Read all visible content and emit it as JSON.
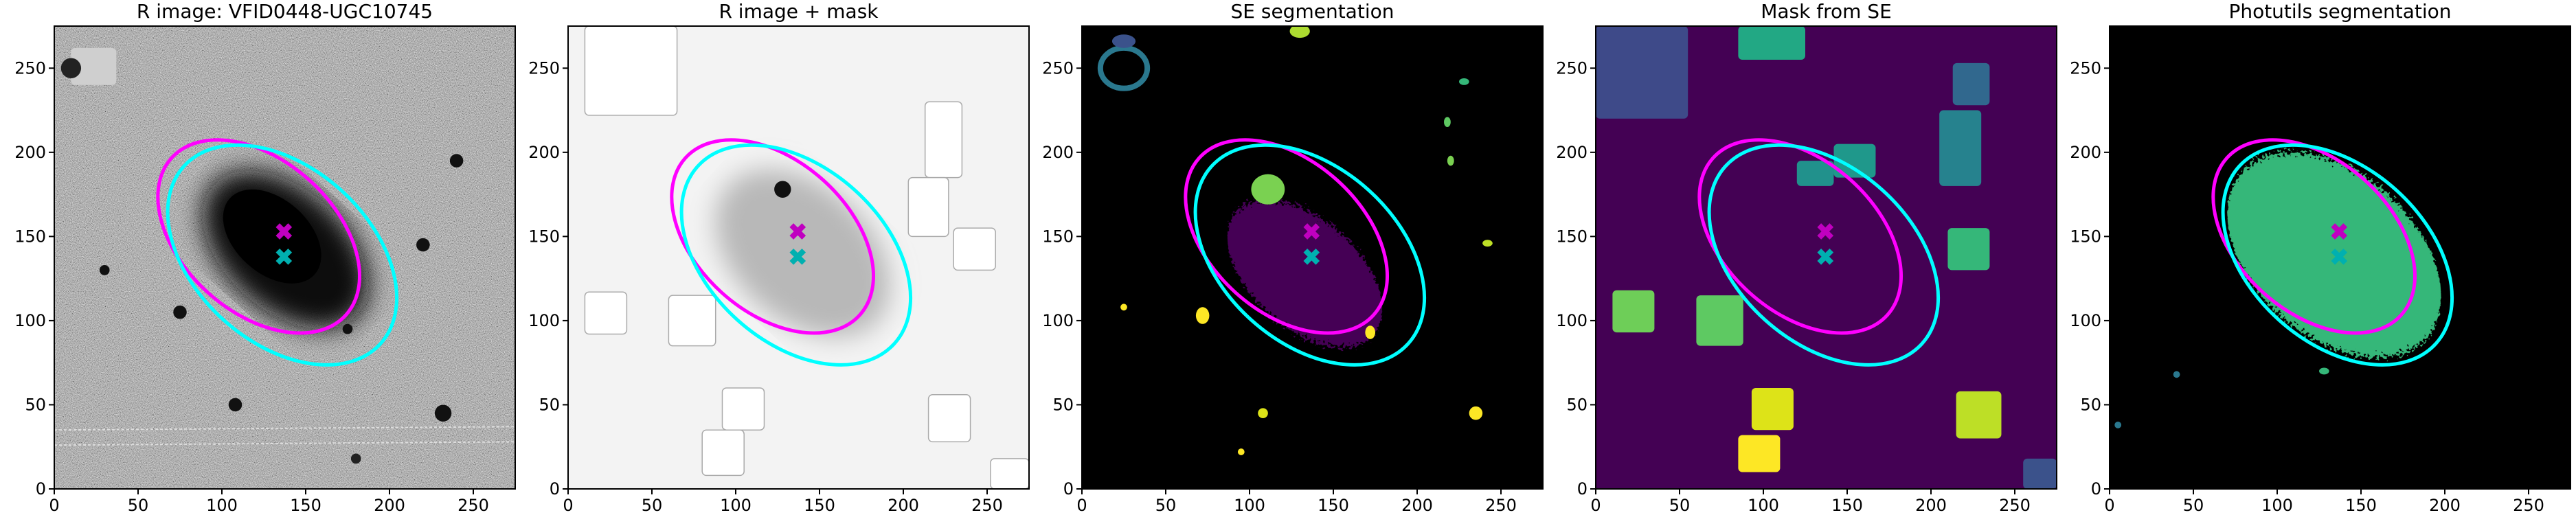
{
  "chart_data": [
    {
      "type": "image",
      "title": "R image: VFID0448-UGC10745",
      "xlim": [
        0,
        275
      ],
      "ylim": [
        0,
        275
      ],
      "xticks": [
        0,
        50,
        100,
        150,
        200,
        250
      ],
      "yticks": [
        0,
        50,
        100,
        150,
        200,
        250
      ],
      "ellipses": [
        {
          "color": "#ff00ff",
          "center": [
            122,
            150
          ],
          "width": 140,
          "height": 90,
          "angle": -42
        },
        {
          "color": "#00ffff",
          "center": [
            136,
            139
          ],
          "width": 158,
          "height": 104,
          "angle": -42
        }
      ],
      "markers": {
        "x": [
          137,
          137
        ],
        "y": [
          153,
          138
        ],
        "colors": [
          "#c000c0",
          "#00b0b0"
        ]
      }
    },
    {
      "type": "image",
      "title": "R image + mask",
      "xlim": [
        0,
        275
      ],
      "ylim": [
        0,
        275
      ],
      "xticks": [
        0,
        50,
        100,
        150,
        200,
        250
      ],
      "yticks": [
        0,
        50,
        100,
        150,
        200,
        250
      ],
      "ellipses": [
        {
          "color": "#ff00ff",
          "center": [
            122,
            150
          ],
          "width": 140,
          "height": 90,
          "angle": -42
        },
        {
          "color": "#00ffff",
          "center": [
            136,
            139
          ],
          "width": 158,
          "height": 104,
          "angle": -42
        }
      ],
      "markers": {
        "x": [
          137,
          137
        ],
        "y": [
          153,
          138
        ],
        "colors": [
          "#c000c0",
          "#00b0b0"
        ]
      }
    },
    {
      "type": "image",
      "title": "SE segmentation",
      "xlim": [
        0,
        275
      ],
      "ylim": [
        0,
        275
      ],
      "xticks": [
        0,
        50,
        100,
        150,
        200,
        250
      ],
      "yticks": [
        0,
        50,
        100,
        150,
        200,
        250
      ],
      "ellipses": [
        {
          "color": "#ff00ff",
          "center": [
            122,
            150
          ],
          "width": 140,
          "height": 90,
          "angle": -42
        },
        {
          "color": "#00ffff",
          "center": [
            136,
            139
          ],
          "width": 158,
          "height": 104,
          "angle": -42
        }
      ],
      "markers": {
        "x": [
          137,
          137
        ],
        "y": [
          153,
          138
        ],
        "colors": [
          "#c000c0",
          "#00b0b0"
        ]
      }
    },
    {
      "type": "image",
      "title": "Mask from SE",
      "xlim": [
        0,
        275
      ],
      "ylim": [
        0,
        275
      ],
      "xticks": [
        0,
        50,
        100,
        150,
        200,
        250
      ],
      "yticks": [
        0,
        50,
        100,
        150,
        200,
        250
      ],
      "ellipses": [
        {
          "color": "#ff00ff",
          "center": [
            122,
            150
          ],
          "width": 140,
          "height": 90,
          "angle": -42
        },
        {
          "color": "#00ffff",
          "center": [
            136,
            139
          ],
          "width": 158,
          "height": 104,
          "angle": -42
        }
      ],
      "markers": {
        "x": [
          137,
          137
        ],
        "y": [
          153,
          138
        ],
        "colors": [
          "#c000c0",
          "#00b0b0"
        ]
      }
    },
    {
      "type": "image",
      "title": "Photutils segmentation",
      "xlim": [
        0,
        275
      ],
      "ylim": [
        0,
        275
      ],
      "xticks": [
        0,
        50,
        100,
        150,
        200,
        250
      ],
      "yticks": [
        0,
        50,
        100,
        150,
        200,
        250
      ],
      "ellipses": [
        {
          "color": "#ff00ff",
          "center": [
            122,
            150
          ],
          "width": 140,
          "height": 90,
          "angle": -42
        },
        {
          "color": "#00ffff",
          "center": [
            136,
            139
          ],
          "width": 158,
          "height": 104,
          "angle": -42
        }
      ],
      "markers": {
        "x": [
          137,
          137
        ],
        "y": [
          153,
          138
        ],
        "colors": [
          "#c000c0",
          "#00b0b0"
        ]
      }
    }
  ]
}
